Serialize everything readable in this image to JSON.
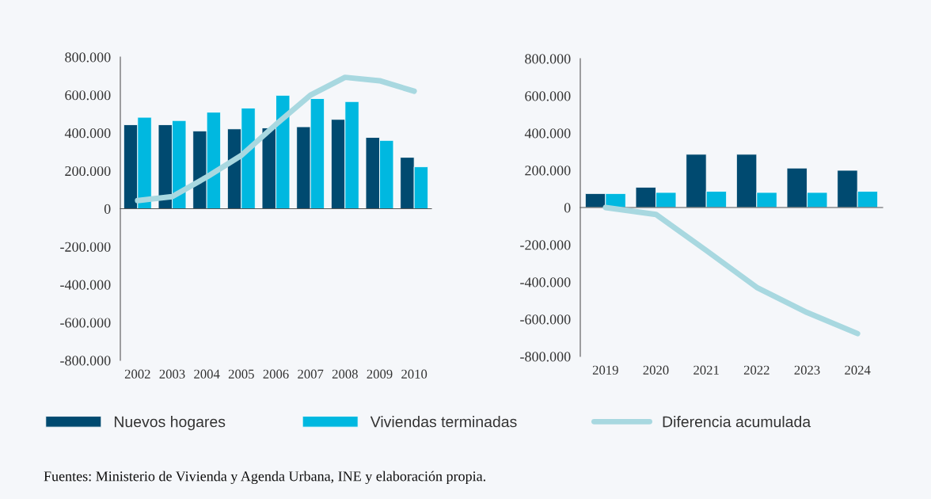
{
  "chart_data": [
    {
      "type": "bar",
      "categories": [
        "2002",
        "2003",
        "2004",
        "2005",
        "2006",
        "2007",
        "2008",
        "2009",
        "2010"
      ],
      "series": [
        {
          "name": "Nuevos hogares",
          "color": "#004a70",
          "values": [
            443000,
            443000,
            410000,
            421000,
            426000,
            432000,
            471000,
            376000,
            271000
          ]
        },
        {
          "name": "Viviendas terminadas",
          "color": "#00b8e0",
          "values": [
            482000,
            465000,
            509000,
            531000,
            598000,
            581000,
            565000,
            360000,
            221000
          ]
        },
        {
          "name": "Diferencia acumulada",
          "type": "line",
          "color": "#a8d8e0",
          "values": [
            43000,
            64000,
            167000,
            281000,
            444000,
            599000,
            693000,
            675000,
            620000
          ]
        }
      ],
      "ylim": [
        -800000,
        800000
      ],
      "yticks": [
        {
          "value": -800000,
          "label": "-800.000"
        },
        {
          "value": -600000,
          "label": "-600.000"
        },
        {
          "value": -400000,
          "label": "-400.000"
        },
        {
          "value": -200000,
          "label": "-200.000"
        },
        0,
        {
          "value": 200000,
          "label": "200.000"
        },
        {
          "value": 400000,
          "label": "400.000"
        },
        {
          "value": 600000,
          "label": "600.000"
        },
        {
          "value": 800000,
          "label": "800.000"
        }
      ],
      "legend": "bottom",
      "annotations": [
        "Fuentes: Ministerio de Vivienda y Agenda Urbana, INE y elaboración propia."
      ]
    },
    {
      "type": "bar",
      "categories": [
        "2019",
        "2020",
        "2021",
        "2022",
        "2023",
        "2024"
      ],
      "series": [
        {
          "color": "#004a70",
          "values": [
            75000,
            109000,
            286000,
            286000,
            212000,
            200000
          ]
        },
        {
          "color": "#00b8e0",
          "values": [
            75000,
            81000,
            87000,
            81000,
            81000,
            87000
          ]
        },
        {
          "type": "line",
          "color": "#a8d8e0",
          "values": [
            0,
            -37000,
            -231000,
            -429000,
            -564000,
            -677000
          ]
        }
      ],
      "ylim": [
        -800000,
        800000
      ],
      "yticks": [
        {
          "value": -800000,
          "label": "-800.000"
        },
        {
          "value": -600000,
          "label": "-600.000"
        },
        {
          "value": -400000,
          "label": "-400.000"
        },
        {
          "value": -200000,
          "label": "-200.000"
        },
        0,
        {
          "value": 200000,
          "label": "200.000"
        },
        {
          "value": 400000,
          "label": "400.000"
        },
        {
          "value": 600000,
          "label": "600.000"
        },
        {
          "value": 800000,
          "label": "800.000"
        }
      ]
    }
  ]
}
